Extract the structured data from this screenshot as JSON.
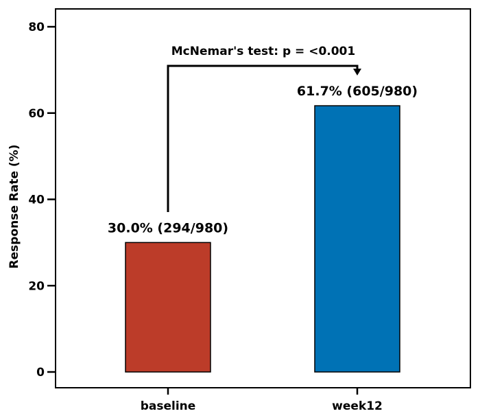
{
  "chart_data": {
    "type": "bar",
    "categories": [
      "baseline",
      "week12"
    ],
    "values": [
      30.0,
      61.7
    ],
    "data_labels": [
      "30.0% (294/980)",
      "61.7% (605/980)"
    ],
    "colors": [
      "#bc3c29",
      "#0072b5"
    ],
    "title": "",
    "xlabel": "",
    "ylabel": "Response Rate (%)",
    "ylim": [
      0,
      84
    ],
    "yticks": [
      0,
      20,
      40,
      60,
      80
    ],
    "ytick_labels": [
      "0",
      "20",
      "40",
      "60",
      "80"
    ],
    "grid": false,
    "annotation": {
      "text": "McNemar's test: p = <0.001",
      "from": "baseline",
      "to": "week12"
    }
  }
}
